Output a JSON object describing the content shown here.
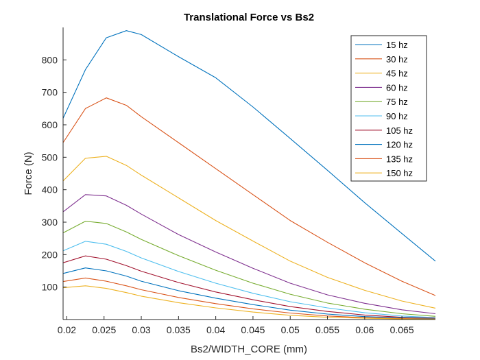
{
  "chart_data": {
    "type": "line",
    "title": "Translational Force vs Bs2",
    "xlabel": "Bs2/WIDTH_CORE (mm)",
    "ylabel": "Force (N)",
    "xlim": [
      0.0195,
      0.0695
    ],
    "ylim": [
      0,
      900
    ],
    "xticks": [
      0.02,
      0.025,
      0.03,
      0.035,
      0.04,
      0.045,
      0.05,
      0.055,
      0.06,
      0.065
    ],
    "xtick_labels": [
      "0.02",
      "0.025",
      "0.03",
      "0.035",
      "0.04",
      "0.045",
      "0.05",
      "0.055",
      "0.06",
      "0.065"
    ],
    "yticks": [
      100,
      200,
      300,
      400,
      500,
      600,
      700,
      800
    ],
    "ytick_labels": [
      "100",
      "200",
      "300",
      "400",
      "500",
      "600",
      "700",
      "800"
    ],
    "grid": false,
    "legend_position": "top-right",
    "x": [
      0.0195,
      0.0225,
      0.0253,
      0.028,
      0.03,
      0.035,
      0.04,
      0.045,
      0.05,
      0.055,
      0.06,
      0.065,
      0.0695
    ],
    "series": [
      {
        "name": "15 hz",
        "color": "#0072BD",
        "values": [
          620,
          770,
          868,
          890,
          878,
          810,
          745,
          655,
          558,
          460,
          360,
          265,
          180
        ]
      },
      {
        "name": "30 hz",
        "color": "#D95319",
        "values": [
          545,
          650,
          683,
          660,
          625,
          545,
          465,
          385,
          305,
          238,
          175,
          118,
          74
        ]
      },
      {
        "name": "45 hz",
        "color": "#EDB120",
        "values": [
          427,
          497,
          503,
          475,
          445,
          375,
          305,
          242,
          180,
          130,
          90,
          57,
          35
        ]
      },
      {
        "name": "60 hz",
        "color": "#7E2F8E",
        "values": [
          332,
          385,
          381,
          352,
          325,
          262,
          208,
          158,
          112,
          76,
          50,
          30,
          18
        ]
      },
      {
        "name": "75 hz",
        "color": "#77AC30",
        "values": [
          267,
          303,
          296,
          270,
          247,
          197,
          152,
          112,
          78,
          51,
          32,
          18,
          10
        ]
      },
      {
        "name": "90 hz",
        "color": "#4DBEEE",
        "values": [
          212,
          241,
          232,
          210,
          190,
          148,
          112,
          81,
          55,
          36,
          21,
          11,
          6
        ]
      },
      {
        "name": "105 hz",
        "color": "#A2142F",
        "values": [
          175,
          196,
          186,
          166,
          149,
          114,
          85,
          61,
          40,
          25,
          14,
          7,
          4
        ]
      },
      {
        "name": "120 hz",
        "color": "#0072BD",
        "values": [
          142,
          159,
          150,
          134,
          118,
          89,
          66,
          46,
          29,
          17,
          9,
          5,
          3
        ]
      },
      {
        "name": "135 hz",
        "color": "#D95319",
        "values": [
          117,
          128,
          118,
          104,
          92,
          68,
          49,
          33,
          20,
          11,
          6,
          3,
          2
        ]
      },
      {
        "name": "150 hz",
        "color": "#EDB120",
        "values": [
          98,
          104,
          96,
          83,
          72,
          52,
          36,
          23,
          13,
          7,
          4,
          2,
          1
        ]
      }
    ]
  }
}
